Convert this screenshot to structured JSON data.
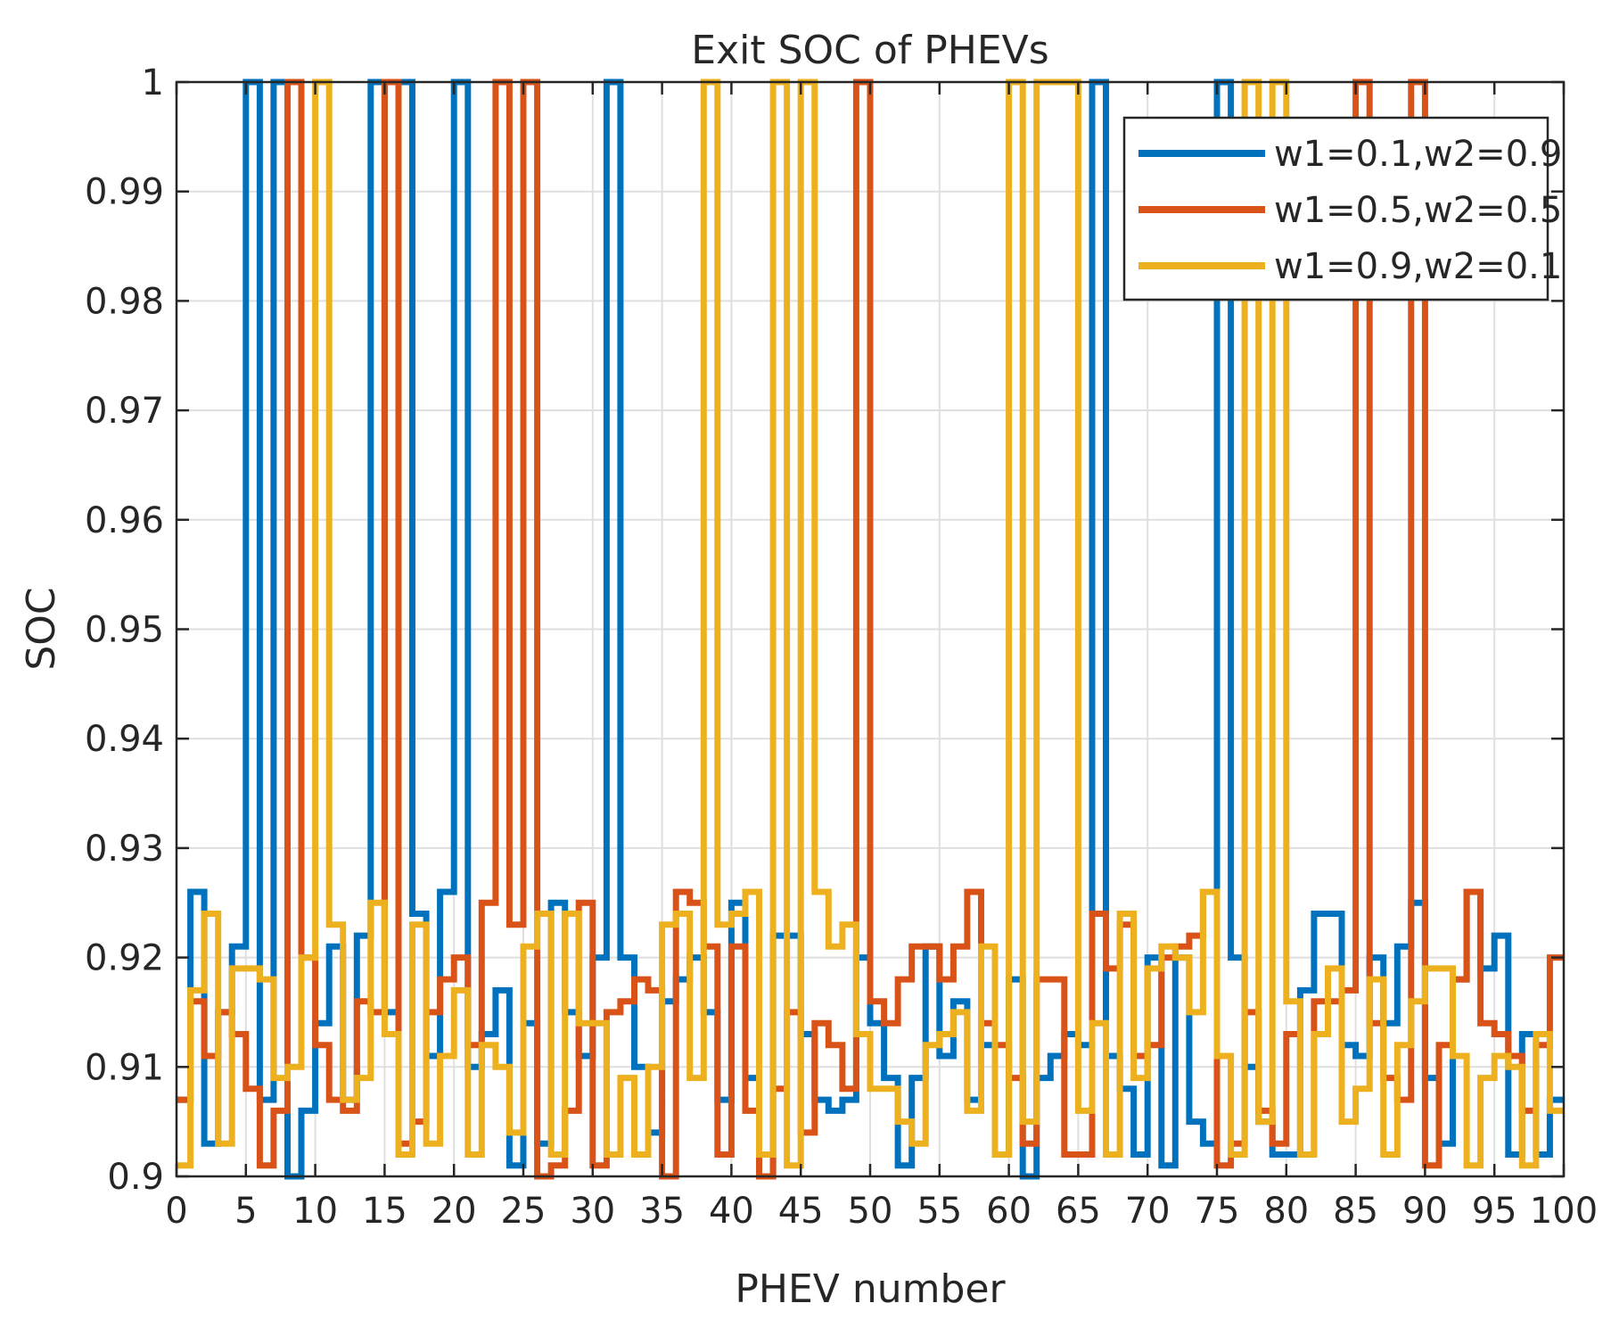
{
  "chart_data": {
    "type": "line",
    "style": "stairs",
    "title": "Exit SOC of PHEVs",
    "xlabel": "PHEV number",
    "ylabel": "SOC",
    "xlim": [
      0,
      100
    ],
    "ylim": [
      0.9,
      1.0
    ],
    "grid": true,
    "legend_position": "top-right",
    "x_ticks": [
      0,
      5,
      10,
      15,
      20,
      25,
      30,
      35,
      40,
      45,
      50,
      55,
      60,
      65,
      70,
      75,
      80,
      85,
      90,
      95,
      100
    ],
    "x_tick_labels": [
      "0",
      "5",
      "10",
      "15",
      "20",
      "25",
      "30",
      "35",
      "40",
      "45",
      "50",
      "55",
      "60",
      "65",
      "70",
      "75",
      "80",
      "85",
      "90",
      "95",
      "100"
    ],
    "y_ticks": [
      0.9,
      0.91,
      0.92,
      0.93,
      0.94,
      0.95,
      0.96,
      0.97,
      0.98,
      0.99,
      1.0
    ],
    "y_tick_labels": [
      "0.9",
      "0.91",
      "0.92",
      "0.93",
      "0.94",
      "0.95",
      "0.96",
      "0.97",
      "0.98",
      "0.99",
      "1"
    ],
    "series": [
      {
        "name": "w1=0.1,w2=0.9",
        "color": "#0072BD",
        "values": [
          0.907,
          0.926,
          0.903,
          0.915,
          0.921,
          1.0,
          0.907,
          1.0,
          0.9,
          0.906,
          0.914,
          0.921,
          0.907,
          0.922,
          1.0,
          0.915,
          1.0,
          0.924,
          0.911,
          0.926,
          1.0,
          0.91,
          0.913,
          0.917,
          0.901,
          0.914,
          0.903,
          0.925,
          0.915,
          0.911,
          0.92,
          1.0,
          0.92,
          0.91,
          0.904,
          0.916,
          0.918,
          0.92,
          0.915,
          0.907,
          0.925,
          0.909,
          0.9,
          0.922,
          0.922,
          0.913,
          0.907,
          0.906,
          0.907,
          0.92,
          0.914,
          0.909,
          0.901,
          0.909,
          0.921,
          0.911,
          0.916,
          0.907,
          0.912,
          0.902,
          0.918,
          0.9,
          0.909,
          0.911,
          0.913,
          0.912,
          1.0,
          0.911,
          0.908,
          0.902,
          0.92,
          0.901,
          0.92,
          0.905,
          0.903,
          1.0,
          0.92,
          0.91,
          0.905,
          0.902,
          0.902,
          0.917,
          0.924,
          0.924,
          0.912,
          0.911,
          0.92,
          0.914,
          0.921,
          0.925,
          0.909,
          0.903,
          0.918,
          0.926,
          0.919,
          0.922,
          0.902,
          0.913,
          0.902,
          0.907,
          0.92
        ]
      },
      {
        "name": "w1=0.5,w2=0.5",
        "color": "#D95319",
        "values": [
          0.907,
          0.916,
          0.911,
          0.915,
          0.913,
          0.908,
          0.901,
          0.906,
          1.0,
          0.92,
          0.912,
          0.907,
          0.906,
          0.916,
          0.915,
          1.0,
          0.903,
          0.905,
          0.915,
          0.918,
          0.92,
          0.912,
          0.925,
          1.0,
          0.923,
          1.0,
          0.9,
          0.901,
          0.906,
          0.925,
          0.901,
          0.915,
          0.916,
          0.918,
          0.917,
          0.9,
          0.926,
          0.925,
          0.921,
          0.902,
          0.921,
          0.906,
          0.9,
          0.908,
          0.915,
          0.904,
          0.914,
          0.912,
          0.908,
          1.0,
          0.916,
          0.914,
          0.918,
          0.921,
          0.921,
          0.918,
          0.921,
          0.926,
          0.914,
          0.912,
          0.909,
          0.903,
          0.918,
          0.918,
          0.902,
          0.902,
          0.924,
          0.919,
          0.923,
          0.911,
          0.912,
          0.92,
          0.921,
          0.922,
          0.926,
          0.901,
          0.903,
          0.915,
          0.906,
          0.903,
          0.913,
          0.902,
          0.916,
          0.916,
          0.917,
          1.0,
          0.914,
          0.909,
          0.907,
          1.0,
          0.901,
          0.912,
          0.918,
          0.926,
          0.914,
          0.913,
          0.911,
          0.906,
          0.912,
          0.92,
          1.0
        ]
      },
      {
        "name": "w1=0.9,w2=0.1",
        "color": "#EDB120",
        "values": [
          0.901,
          0.917,
          0.924,
          0.903,
          0.919,
          0.919,
          0.918,
          0.909,
          0.91,
          0.92,
          1.0,
          0.923,
          0.907,
          0.909,
          0.925,
          0.913,
          0.902,
          0.923,
          0.903,
          0.911,
          0.917,
          0.902,
          0.912,
          0.91,
          0.904,
          0.921,
          0.924,
          0.902,
          0.924,
          0.914,
          0.914,
          0.902,
          0.909,
          0.902,
          0.91,
          0.923,
          0.924,
          0.909,
          1.0,
          0.923,
          0.924,
          0.926,
          0.902,
          1.0,
          0.901,
          1.0,
          0.926,
          0.921,
          0.923,
          0.913,
          0.908,
          0.908,
          0.905,
          0.903,
          0.912,
          0.913,
          0.915,
          0.906,
          0.921,
          0.902,
          1.0,
          0.905,
          1.0,
          1.0,
          1.0,
          0.906,
          0.914,
          0.902,
          0.924,
          0.909,
          0.919,
          0.921,
          0.92,
          0.915,
          0.926,
          0.911,
          0.902,
          1.0,
          0.905,
          1.0,
          0.916,
          0.902,
          0.913,
          0.919,
          0.905,
          0.908,
          0.918,
          0.902,
          0.912,
          0.916,
          0.919,
          0.919,
          0.911,
          0.901,
          0.909,
          0.911,
          0.91,
          0.901,
          0.913,
          0.906,
          0.925
        ]
      }
    ]
  }
}
